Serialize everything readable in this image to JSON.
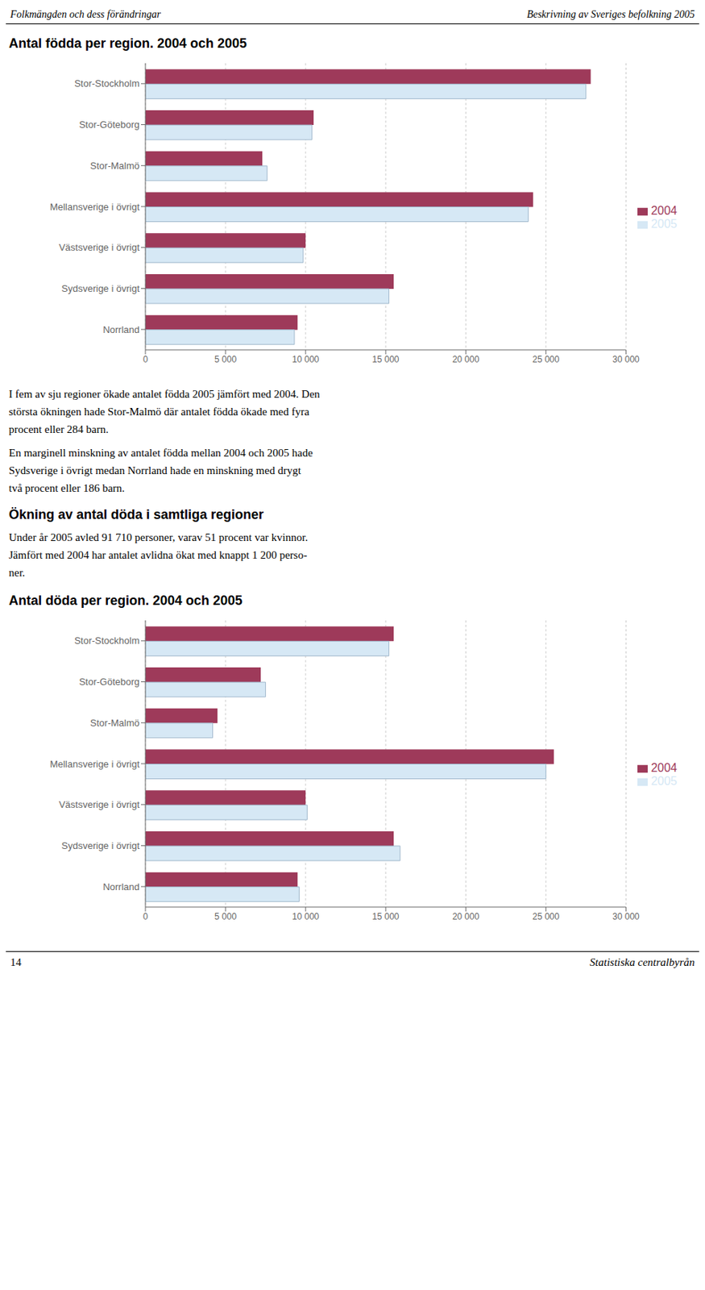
{
  "header": [
    "Folkmängden och dess förändringar",
    "Beskrivning av Sveriges befolkning 2005"
  ],
  "footer": [
    "14",
    "Statistiska centralbyrån"
  ],
  "chart_data": [
    {
      "type": "bar",
      "orientation": "horizontal",
      "title": "Antal födda per region. 2004 och 2005",
      "categories": [
        "Stor-Stockholm",
        "Stor-Göteborg",
        "Stor-Malmö",
        "Mellansverige i övrigt",
        "Västsverige i övrigt",
        "Sydsverige i övrigt",
        "Norrland"
      ],
      "series": [
        {
          "name": "2004",
          "color": "#9e3a5a",
          "values": [
            27800,
            10500,
            7300,
            24200,
            10000,
            15500,
            9500
          ]
        },
        {
          "name": "2005",
          "color": "#d6e8f5",
          "values": [
            27500,
            10400,
            7600,
            23900,
            9850,
            15200,
            9300
          ]
        }
      ],
      "xlim": [
        0,
        30000
      ],
      "xticks": [
        0,
        {
          "value": 5000,
          "label": "5 000"
        },
        {
          "value": 10000,
          "label": "10 000"
        },
        {
          "value": 15000,
          "label": "15 000"
        },
        {
          "value": 20000,
          "label": "20 000"
        },
        {
          "value": 25000,
          "label": "25 000"
        },
        {
          "value": 30000,
          "label": "30 000"
        }
      ],
      "grid": true,
      "legend": "right",
      "annotations": [
        "I fem av sju regioner ökade antalet födda 2005 jämfört med 2004. Den\nstörsta ökningen hade Stor-Malmö där antalet födda ökade med fyra\nprocent eller 284 barn.",
        "En marginell minskning av antalet födda mellan 2004 och 2005 hade\nSydsverige i övrigt medan Norrland hade en minskning med drygt\ntvå procent eller 186 barn."
      ]
    },
    {
      "type": "bar",
      "orientation": "horizontal",
      "heading": "Ökning av antal döda i samtliga regioner",
      "subtitle": "Under år 2005 avled 91 710 personer, varav 51 procent var kvinnor.\nJämfört med 2004 har antalet avlidna ökat med knappt 1 200 perso-\nner.",
      "title": "Antal döda per region. 2004 och 2005",
      "categories": [
        "Stor-Stockholm",
        "Stor-Göteborg",
        "Stor-Malmö",
        "Mellansverige i övrigt",
        "Västsverige i övrigt",
        "Sydsverige i övrigt",
        "Norrland"
      ],
      "series": [
        {
          "name": "2004",
          "color": "#9e3a5a",
          "values": [
            15500,
            7200,
            4500,
            25500,
            10000,
            15500,
            9500
          ]
        },
        {
          "name": "2005",
          "color": "#d6e8f5",
          "values": [
            15200,
            7500,
            4200,
            25000,
            10100,
            15900,
            9600
          ]
        }
      ],
      "xlim": [
        0,
        30000
      ],
      "xticks": [
        0,
        {
          "value": 5000,
          "label": "5 000"
        },
        {
          "value": 10000,
          "label": "10 000"
        },
        {
          "value": 15000,
          "label": "15 000"
        },
        {
          "value": 20000,
          "label": "20 000"
        },
        {
          "value": 25000,
          "label": "25 000"
        },
        {
          "value": 30000,
          "label": "30 000"
        }
      ],
      "grid": true,
      "legend": "right"
    }
  ]
}
